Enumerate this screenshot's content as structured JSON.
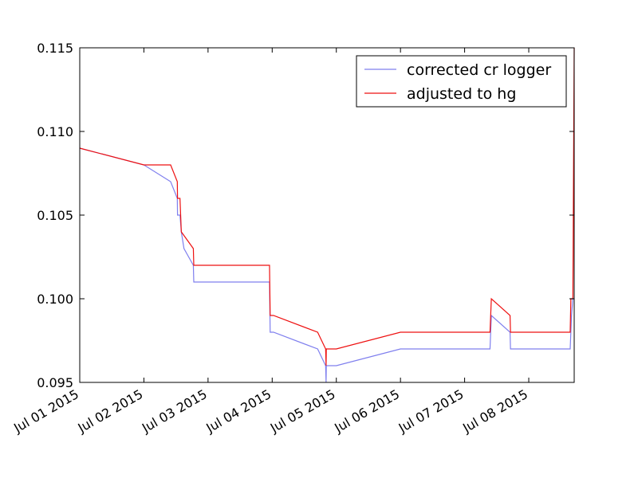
{
  "chart_data": {
    "type": "line",
    "title": "",
    "xlabel": "",
    "ylabel": "",
    "xlim": [
      "2015-07-01 00:00",
      "2015-07-08 17:00"
    ],
    "ylim": [
      0.095,
      0.115
    ],
    "x_tick_labels": [
      "Jul 01 2015",
      "Jul 02 2015",
      "Jul 03 2015",
      "Jul 04 2015",
      "Jul 05 2015",
      "Jul 06 2015",
      "Jul 07 2015",
      "Jul 08 2015"
    ],
    "y_tick_labels": [
      "0.095",
      "0.100",
      "0.105",
      "0.110",
      "0.115"
    ],
    "grid": false,
    "legend_position": "top-right",
    "series": [
      {
        "name": "corrected cr logger",
        "color": "#7f7fee",
        "points": [
          [
            "2015-07-01 00:00",
            0.109
          ],
          [
            "2015-07-02 00:00",
            0.108
          ],
          [
            "2015-07-02 10:00",
            0.107
          ],
          [
            "2015-07-02 12:30",
            0.106
          ],
          [
            "2015-07-02 12:35",
            0.105
          ],
          [
            "2015-07-02 13:30",
            0.105
          ],
          [
            "2015-07-02 14:00",
            0.104
          ],
          [
            "2015-07-02 15:00",
            0.103
          ],
          [
            "2015-07-02 18:30",
            0.102
          ],
          [
            "2015-07-02 18:40",
            0.101
          ],
          [
            "2015-07-03 23:00",
            0.101
          ],
          [
            "2015-07-03 23:15",
            0.098
          ],
          [
            "2015-07-04 00:30",
            0.098
          ],
          [
            "2015-07-04 17:00",
            0.097
          ],
          [
            "2015-07-04 20:00",
            0.096
          ],
          [
            "2015-07-04 20:10",
            0.095
          ],
          [
            "2015-07-04 20:15",
            0.096
          ],
          [
            "2015-07-05 00:00",
            0.096
          ],
          [
            "2015-07-06 00:00",
            0.097
          ],
          [
            "2015-07-07 09:30",
            0.097
          ],
          [
            "2015-07-07 10:00",
            0.099
          ],
          [
            "2015-07-07 17:00",
            0.098
          ],
          [
            "2015-07-07 17:10",
            0.097
          ],
          [
            "2015-07-08 15:30",
            0.097
          ],
          [
            "2015-07-08 16:00",
            0.099
          ],
          [
            "2015-07-08 16:30",
            0.1
          ],
          [
            "2015-07-08 17:00",
            0.1
          ]
        ]
      },
      {
        "name": "adjusted to hg",
        "color": "#ee1111",
        "points": [
          [
            "2015-07-01 00:00",
            0.109
          ],
          [
            "2015-07-02 00:00",
            0.108
          ],
          [
            "2015-07-02 10:00",
            0.108
          ],
          [
            "2015-07-02 12:30",
            0.107
          ],
          [
            "2015-07-02 12:35",
            0.106
          ],
          [
            "2015-07-02 13:30",
            0.106
          ],
          [
            "2015-07-02 14:00",
            0.104
          ],
          [
            "2015-07-02 18:30",
            0.103
          ],
          [
            "2015-07-02 18:40",
            0.102
          ],
          [
            "2015-07-03 23:00",
            0.102
          ],
          [
            "2015-07-03 23:15",
            0.099
          ],
          [
            "2015-07-04 00:30",
            0.099
          ],
          [
            "2015-07-04 17:00",
            0.098
          ],
          [
            "2015-07-04 20:00",
            0.097
          ],
          [
            "2015-07-04 20:10",
            0.096
          ],
          [
            "2015-07-04 20:15",
            0.097
          ],
          [
            "2015-07-05 00:00",
            0.097
          ],
          [
            "2015-07-06 00:00",
            0.098
          ],
          [
            "2015-07-07 09:30",
            0.098
          ],
          [
            "2015-07-07 10:00",
            0.1
          ],
          [
            "2015-07-07 17:00",
            0.099
          ],
          [
            "2015-07-07 17:10",
            0.098
          ],
          [
            "2015-07-08 15:30",
            0.098
          ],
          [
            "2015-07-08 15:45",
            0.1
          ],
          [
            "2015-07-08 16:30",
            0.1
          ],
          [
            "2015-07-08 17:00",
            0.115
          ]
        ]
      }
    ]
  }
}
